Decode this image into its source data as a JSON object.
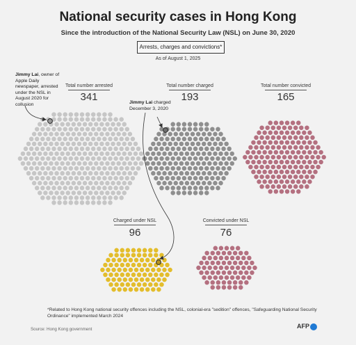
{
  "chart_data": {
    "type": "dot-matrix",
    "title": "National security cases in Hong Kong",
    "subtitle": "Since the introduction of the National Security Law (NSL) on June 30, 2020",
    "category_label": "Arrests, charges and convictions*",
    "as_of": "As of August 1, 2025",
    "groups": [
      {
        "id": "arrested",
        "label": "Total number arrested",
        "value": 341,
        "value_text": "341",
        "color": "#c6c6c6"
      },
      {
        "id": "charged",
        "label": "Total number charged",
        "value": 193,
        "value_text": "193",
        "color": "#8f8f8f"
      },
      {
        "id": "convicted",
        "label": "Total number convicted",
        "value": 165,
        "value_text": "165",
        "color": "#b47080"
      },
      {
        "id": "charged_nsl",
        "label": "Charged under NSL",
        "value": 96,
        "value_text": "96",
        "color": "#e3bd2c"
      },
      {
        "id": "convicted_nsl",
        "label": "Convicted under NSL",
        "value": 76,
        "value_text": "76",
        "color": "#b47080"
      }
    ],
    "annotations": [
      {
        "name": "Jimmy Lai",
        "text": ", owner of Apple Daily newspaper, arrested under the NSL in August 2020 for collusion"
      },
      {
        "name": "Jimmy Lai",
        "text": " charged December 3, 2020"
      }
    ]
  },
  "footnote": "*Related to Hong Kong national security offences including the NSL, colonial-era \"sedition\" offences, \"Safeguarding National Security Ordinance\" implemented March 2024",
  "source": "Source: Hong Kong government",
  "logo": "AFP",
  "colors": {
    "background": "#f2f2f2",
    "highlight_stroke": "#333333",
    "arrow": "#333333"
  }
}
